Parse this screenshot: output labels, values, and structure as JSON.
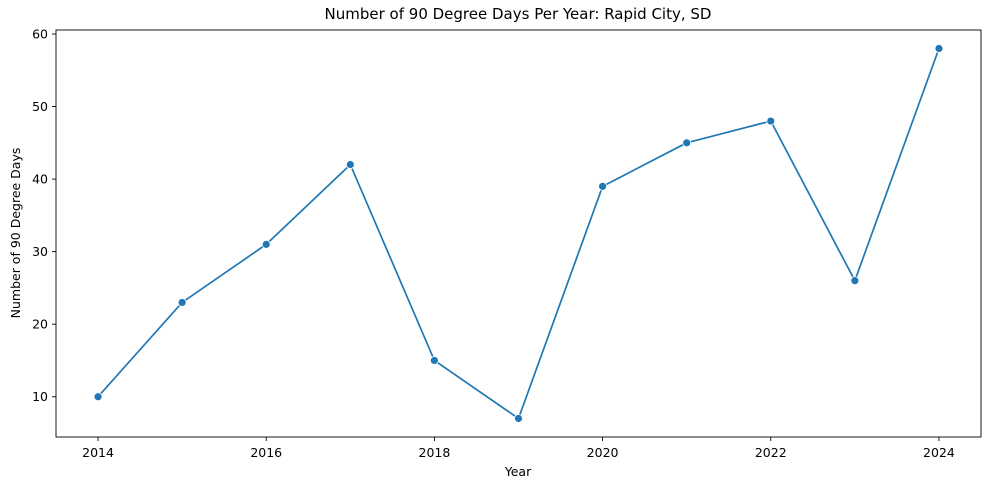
{
  "chart_data": {
    "type": "line",
    "title": "Number of 90 Degree Days Per Year: Rapid City, SD",
    "xlabel": "Year",
    "ylabel": "Number of 90 Degree Days",
    "x": [
      2014,
      2015,
      2016,
      2017,
      2018,
      2019,
      2020,
      2021,
      2022,
      2023,
      2024
    ],
    "series": [
      {
        "values": [
          10,
          23,
          31,
          42,
          15,
          7,
          39,
          45,
          48,
          26,
          58
        ],
        "color": "#1f77b4",
        "marker": "circle"
      }
    ],
    "xticks": [
      2014,
      2016,
      2018,
      2020,
      2022,
      2024
    ],
    "yticks": [
      10,
      20,
      30,
      40,
      50,
      60
    ],
    "xlim": [
      2013.5,
      2024.5
    ],
    "ylim": [
      4.45,
      60.55
    ],
    "grid": false,
    "legend": "none"
  }
}
